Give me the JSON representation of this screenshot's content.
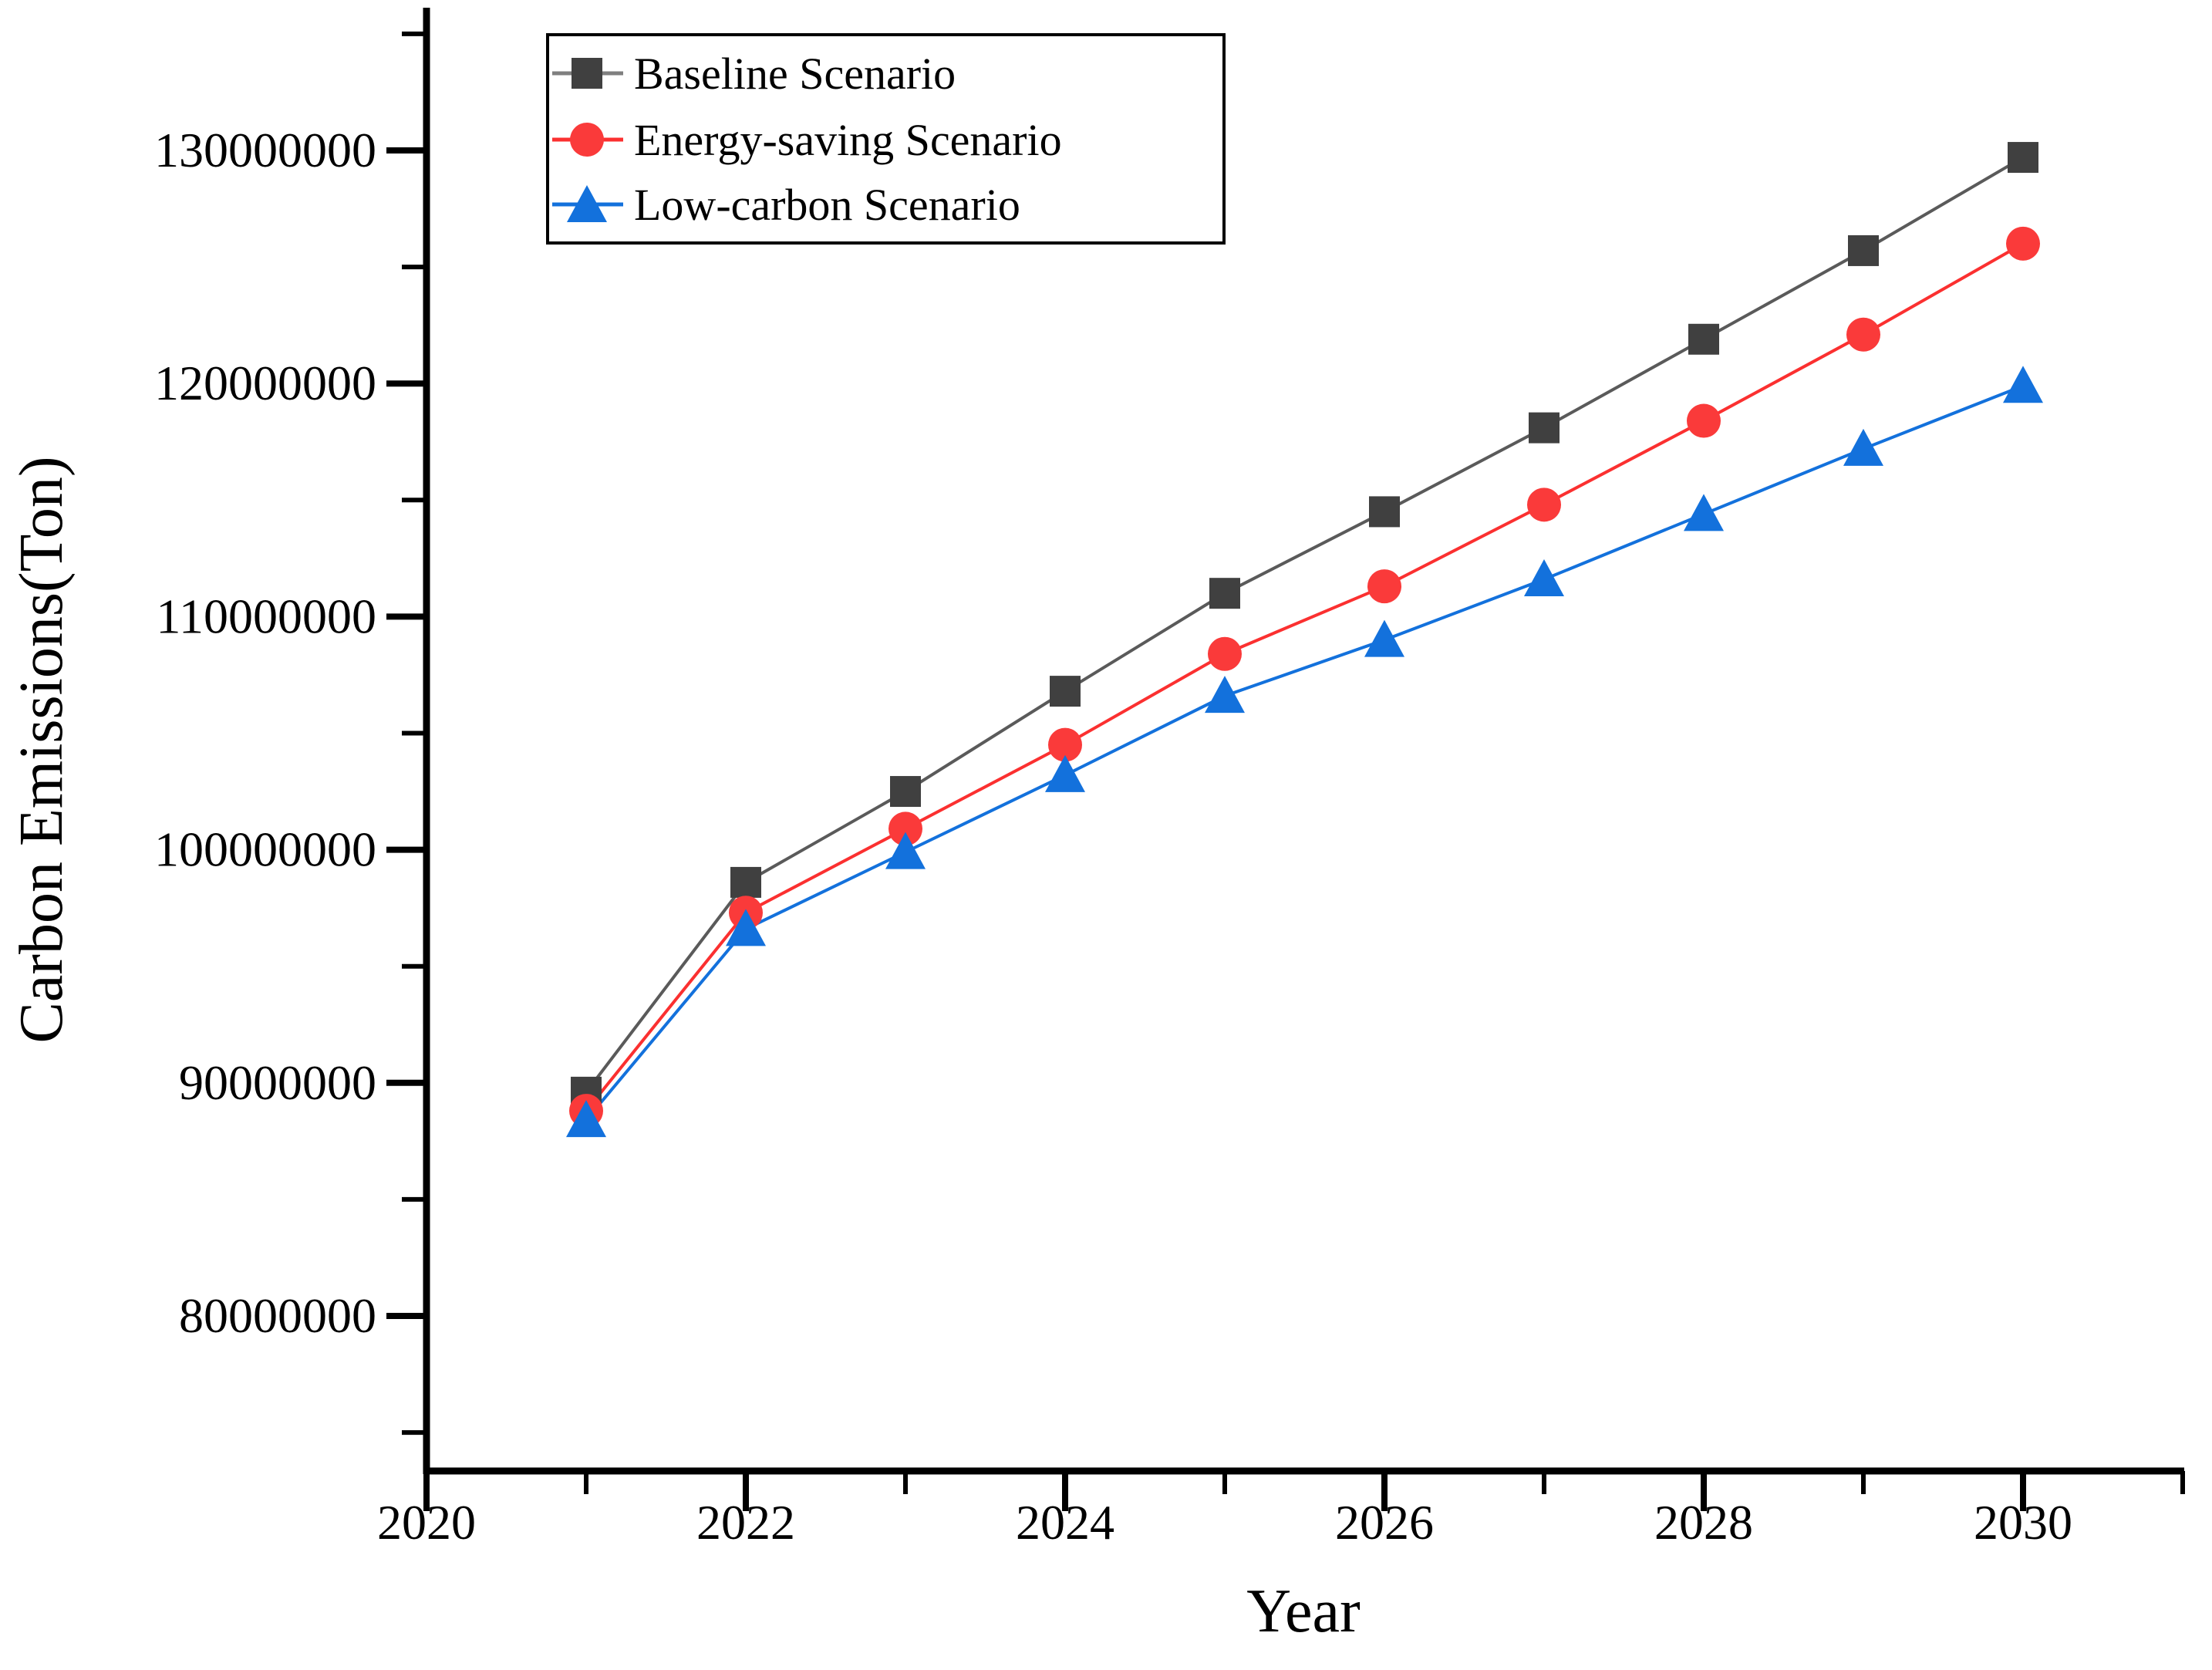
{
  "figure": {
    "background": "#ffffff",
    "axis_color": "#000000"
  },
  "chart_data": {
    "type": "line",
    "title": "",
    "xlabel": "Year",
    "ylabel": "Carbon Emissions(Ton)",
    "grid": false,
    "legend_position": "top-left",
    "x": [
      2021,
      2022,
      2023,
      2024,
      2025,
      2026,
      2027,
      2028,
      2029,
      2030
    ],
    "series": [
      {
        "name": "Baseline Scenario",
        "marker": "square",
        "color": "#404040",
        "line_color": "#5a5a5a",
        "values": [
          89600000,
          98600000,
          102500000,
          106800000,
          111000000,
          114500000,
          118100000,
          121900000,
          125700000,
          129700000
        ]
      },
      {
        "name": "Energy-saving Scenario",
        "marker": "circle",
        "color": "#fa3a3a",
        "line_color": "#fb3030",
        "values": [
          88800000,
          97300000,
          100900000,
          104500000,
          108400000,
          111300000,
          114800000,
          118400000,
          122100000,
          126000000
        ]
      },
      {
        "name": "Low-carbon Scenario",
        "marker": "triangle",
        "color": "#1371dc",
        "line_color": "#1371dc",
        "values": [
          88400000,
          96600000,
          99900000,
          103200000,
          106600000,
          109000000,
          111600000,
          114400000,
          117200000,
          119900000
        ]
      }
    ],
    "x_axis": {
      "label": "Year",
      "range": [
        2020,
        2031
      ],
      "major_ticks": [
        2020,
        2022,
        2024,
        2026,
        2028,
        2030
      ],
      "major_tick_labels": [
        "2020",
        "2022",
        "2024",
        "2026",
        "2028",
        "2030"
      ],
      "minor_ticks": [
        2021,
        2023,
        2025,
        2027,
        2029,
        2031
      ]
    },
    "y_axis": {
      "label": "Carbon Emissions(Ton)",
      "range": [
        73300000,
        136000000
      ],
      "major_ticks": [
        130000000,
        120000000,
        110000000,
        100000000,
        90000000,
        80000000
      ],
      "major_tick_labels": [
        "130000000",
        "120000000",
        "110000000",
        "100000000",
        "90000000",
        "80000000"
      ],
      "minor_ticks": [
        135000000,
        125000000,
        115000000,
        105000000,
        95000000,
        85000000,
        75000000
      ]
    }
  }
}
